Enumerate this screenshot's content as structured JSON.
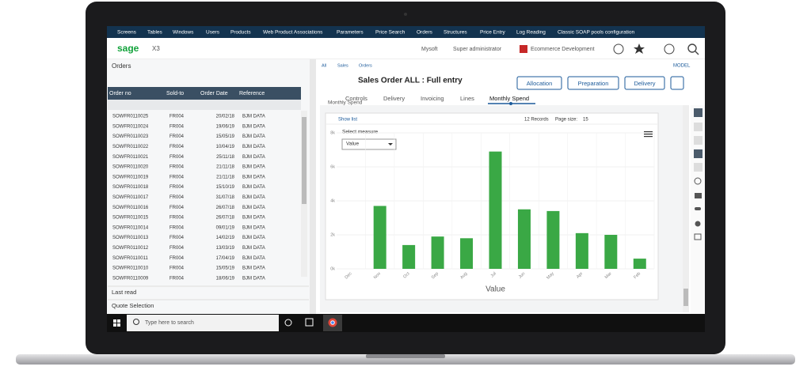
{
  "menu": [
    "Screens",
    "Tables",
    "Windows",
    "Users",
    "Products",
    "Web Product Associations",
    "Parameters",
    "Price Search",
    "Orders",
    "Structures",
    "Price Entry",
    "Log Reading",
    "Classic SOAP pools configuration"
  ],
  "header": {
    "logo": "sage",
    "product": "X3",
    "company": "Mysoft",
    "user": "Super administrator",
    "environment": "Ecommerce Development",
    "model": "MODEL"
  },
  "left_panel": {
    "title": "Orders",
    "table": {
      "columns": [
        "Order no",
        "Sold-to",
        "Order Date",
        "Reference"
      ],
      "rows": [
        [
          "SOWFR0110025",
          "FR004",
          "20/02/18",
          "BJM DATA"
        ],
        [
          "SOWFR0110024",
          "FR004",
          "19/06/19",
          "BJM DATA"
        ],
        [
          "SOWFR0110023",
          "FR004",
          "15/05/19",
          "BJM DATA"
        ],
        [
          "SOWFR0110022",
          "FR004",
          "10/04/19",
          "BJM DATA"
        ],
        [
          "SOWFR0110021",
          "FR004",
          "25/11/18",
          "BJM DATA"
        ],
        [
          "SOWFR0110020",
          "FR004",
          "21/11/18",
          "BJM DATA"
        ],
        [
          "SOWFR0110019",
          "FR004",
          "21/11/18",
          "BJM DATA"
        ],
        [
          "SOWFR0110018",
          "FR004",
          "15/10/19",
          "BJM DATA"
        ],
        [
          "SOWFR0110017",
          "FR004",
          "31/07/18",
          "BJM DATA"
        ],
        [
          "SOWFR0110016",
          "FR004",
          "26/07/18",
          "BJM DATA"
        ],
        [
          "SOWFR0110015",
          "FR004",
          "26/07/18",
          "BJM DATA"
        ],
        [
          "SOWFR0110014",
          "FR004",
          "09/01/19",
          "BJM DATA"
        ],
        [
          "SOWFR0110013",
          "FR004",
          "14/02/19",
          "BJM DATA"
        ],
        [
          "SOWFR0110012",
          "FR004",
          "13/03/19",
          "BJM DATA"
        ],
        [
          "SOWFR0110011",
          "FR004",
          "17/04/19",
          "BJM DATA"
        ],
        [
          "SOWFR0110010",
          "FR004",
          "15/05/19",
          "BJM DATA"
        ],
        [
          "SOWFR0110009",
          "FR004",
          "18/06/19",
          "BJM DATA"
        ]
      ]
    },
    "sections": [
      "Last read",
      "Quote Selection"
    ]
  },
  "breadcrumb": [
    "All",
    "Sales",
    "Orders"
  ],
  "page_title": "Sales Order ALL : Full entry",
  "buttons": [
    "Allocation",
    "Preparation",
    "Delivery"
  ],
  "tabs": [
    "Controls",
    "Delivery",
    "Invoicing",
    "Lines",
    "Monthly Spend"
  ],
  "chart_panel": {
    "heading": "Monthly Spend",
    "show_list": "Show list",
    "records": "12 Records",
    "page_size_label": "Page size:",
    "page_size": "15",
    "select_measure": "Select measure",
    "measure": "Value"
  },
  "chart_data": {
    "type": "bar",
    "color": "#3aa845",
    "categories": [
      "Dec",
      "Nov",
      "Oct",
      "Sep",
      "Aug",
      "Jul",
      "Jun",
      "May",
      "Apr",
      "Mar",
      "Feb"
    ],
    "values": [
      null,
      3700,
      1400,
      1900,
      1800,
      6900,
      3500,
      3400,
      2100,
      2000,
      600
    ],
    "ylim": [
      0,
      8000
    ],
    "yticks": [
      {
        "value": 0,
        "label": "0k"
      },
      {
        "value": 2000,
        "label": "2k"
      },
      {
        "value": 4000,
        "label": "4k"
      },
      {
        "value": 6000,
        "label": "6k"
      },
      {
        "value": 8000,
        "label": "8k"
      }
    ],
    "x_label": "Value",
    "grid": true
  },
  "taskbar": {
    "search": "Type here to search"
  }
}
